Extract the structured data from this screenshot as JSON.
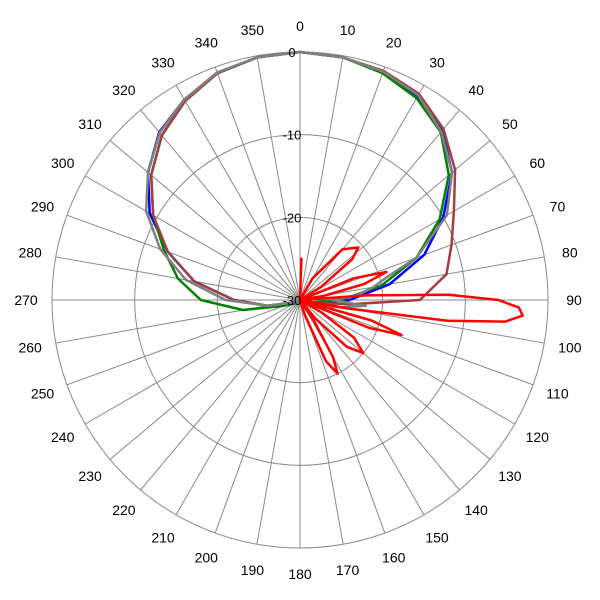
{
  "chart_data": {
    "type": "polar",
    "angle_unit": "deg",
    "direction": "clockwise",
    "zero_location": "top",
    "angle_ticks": [
      0,
      10,
      20,
      30,
      40,
      50,
      60,
      70,
      80,
      90,
      100,
      110,
      120,
      130,
      140,
      150,
      160,
      170,
      180,
      190,
      200,
      210,
      220,
      230,
      240,
      250,
      260,
      270,
      280,
      290,
      300,
      310,
      320,
      330,
      340,
      350
    ],
    "radial_ticks": [
      0,
      -10,
      -20,
      -30
    ],
    "rlim": [
      -30,
      0
    ],
    "grid": true,
    "legend": "none",
    "series": [
      {
        "color": "#0000ff",
        "points": [
          [
            0,
            0
          ],
          [
            10,
            -0.2
          ],
          [
            20,
            -0.6
          ],
          [
            30,
            -1.5
          ],
          [
            40,
            -3.2
          ],
          [
            50,
            -6
          ],
          [
            60,
            -10
          ],
          [
            70,
            -14
          ],
          [
            80,
            -19
          ],
          [
            90,
            -24
          ],
          [
            100,
            -28
          ],
          [
            110,
            -29.5
          ],
          [
            250,
            -29
          ],
          [
            260,
            -26
          ],
          [
            270,
            -22
          ],
          [
            280,
            -17
          ],
          [
            290,
            -13
          ],
          [
            300,
            -9
          ],
          [
            310,
            -6
          ],
          [
            320,
            -3.5
          ],
          [
            330,
            -2
          ],
          [
            340,
            -0.8
          ],
          [
            350,
            -0.2
          ]
        ]
      },
      {
        "color": "#008000",
        "points": [
          [
            0,
            0
          ],
          [
            10,
            -0.2
          ],
          [
            20,
            -0.8
          ],
          [
            30,
            -1.8
          ],
          [
            40,
            -3.5
          ],
          [
            50,
            -6.5
          ],
          [
            60,
            -10.5
          ],
          [
            70,
            -15
          ],
          [
            80,
            -20
          ],
          [
            90,
            -25
          ],
          [
            100,
            -28.5
          ],
          [
            110,
            -29.5
          ],
          [
            250,
            -28
          ],
          [
            260,
            -23
          ],
          [
            270,
            -18
          ],
          [
            280,
            -15
          ],
          [
            290,
            -12.5
          ],
          [
            300,
            -9.5
          ],
          [
            310,
            -6.5
          ],
          [
            320,
            -4
          ],
          [
            330,
            -2.2
          ],
          [
            340,
            -0.8
          ],
          [
            350,
            -0.2
          ]
        ]
      },
      {
        "color": "#a04040",
        "points": [
          [
            0,
            0
          ],
          [
            10,
            -0.2
          ],
          [
            20,
            -0.5
          ],
          [
            30,
            -1.2
          ],
          [
            40,
            -3
          ],
          [
            50,
            -5.5
          ],
          [
            60,
            -8.5
          ],
          [
            70,
            -10.5
          ],
          [
            80,
            -12
          ],
          [
            90,
            -15.5
          ],
          [
            95,
            -24
          ],
          [
            100,
            -28
          ],
          [
            110,
            -29
          ],
          [
            250,
            -29
          ],
          [
            260,
            -26
          ],
          [
            270,
            -22
          ],
          [
            280,
            -17
          ],
          [
            290,
            -13
          ],
          [
            300,
            -9.5
          ],
          [
            310,
            -6.5
          ],
          [
            320,
            -4
          ],
          [
            330,
            -2.2
          ],
          [
            340,
            -0.8
          ],
          [
            350,
            -0.2
          ]
        ]
      },
      {
        "color": "#808080",
        "points": [
          [
            0,
            0
          ],
          [
            10,
            -0.2
          ],
          [
            20,
            -0.6
          ],
          [
            30,
            -1.4
          ],
          [
            40,
            -3.4
          ],
          [
            50,
            -6
          ],
          [
            60,
            -9.5
          ],
          [
            70,
            -15
          ],
          [
            75,
            -19
          ],
          [
            80,
            -21
          ],
          [
            85,
            -23
          ],
          [
            90,
            -26
          ],
          [
            95,
            -22
          ],
          [
            100,
            -25
          ],
          [
            110,
            -28
          ],
          [
            120,
            -29.5
          ],
          [
            250,
            -29
          ],
          [
            260,
            -26
          ],
          [
            270,
            -21
          ],
          [
            280,
            -16
          ],
          [
            290,
            -12
          ],
          [
            300,
            -8.5
          ],
          [
            310,
            -6
          ],
          [
            320,
            -3.6
          ],
          [
            330,
            -2
          ],
          [
            340,
            -0.7
          ],
          [
            350,
            -0.2
          ]
        ]
      },
      {
        "color": "#ff0000",
        "points": [
          [
            0,
            -30
          ],
          [
            2,
            -25
          ],
          [
            4,
            -30
          ],
          [
            20,
            -30
          ],
          [
            30,
            -27
          ],
          [
            40,
            -22
          ],
          [
            48,
            -20.5
          ],
          [
            52,
            -22
          ],
          [
            58,
            -27
          ],
          [
            64,
            -30
          ],
          [
            68,
            -23
          ],
          [
            72,
            -19
          ],
          [
            76,
            -22
          ],
          [
            80,
            -27
          ],
          [
            84,
            -30
          ],
          [
            86,
            -22
          ],
          [
            88,
            -12
          ],
          [
            90,
            -6
          ],
          [
            92,
            -3.5
          ],
          [
            94,
            -3
          ],
          [
            96,
            -5
          ],
          [
            98,
            -12
          ],
          [
            100,
            -24
          ],
          [
            103,
            -30
          ],
          [
            106,
            -21
          ],
          [
            109,
            -17
          ],
          [
            112,
            -21
          ],
          [
            116,
            -30
          ],
          [
            120,
            -27
          ],
          [
            125,
            -22
          ],
          [
            130,
            -20
          ],
          [
            135,
            -22
          ],
          [
            140,
            -27
          ],
          [
            144,
            -30
          ],
          [
            146,
            -27
          ],
          [
            150,
            -22
          ],
          [
            153,
            -20
          ],
          [
            157,
            -22
          ],
          [
            162,
            -28
          ],
          [
            166,
            -30
          ],
          [
            360,
            -30
          ]
        ]
      }
    ]
  }
}
